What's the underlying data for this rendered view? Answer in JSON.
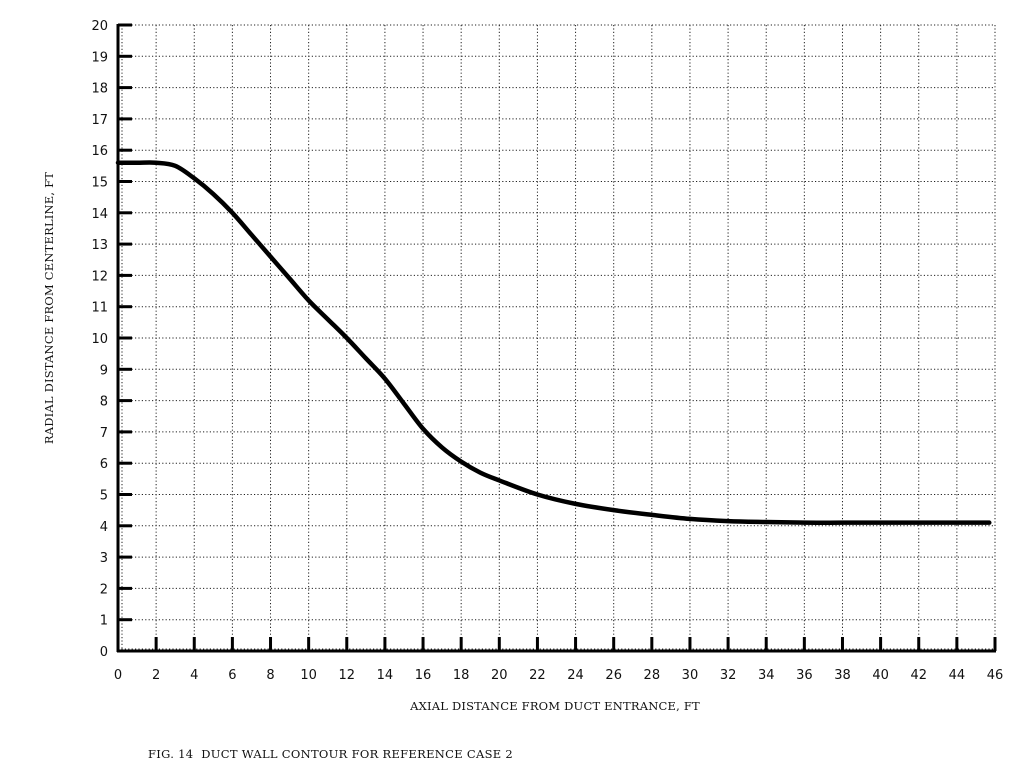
{
  "figure": {
    "caption": "FIG. 14  DUCT WALL CONTOUR FOR REFERENCE CASE 2"
  },
  "chart_data": {
    "type": "line",
    "title": "DUCT WALL CONTOUR FOR REFERENCE CASE 2",
    "figure_number": "FIG. 14",
    "xlabel": "AXIAL DISTANCE FROM DUCT ENTRANCE, FT",
    "ylabel": "RADIAL DISTANCE FROM CENTERLINE, FT",
    "xlim": [
      0,
      46
    ],
    "ylim": [
      0,
      20
    ],
    "x_ticks": [
      0,
      2,
      4,
      6,
      8,
      10,
      12,
      14,
      16,
      18,
      20,
      22,
      24,
      26,
      28,
      30,
      32,
      34,
      36,
      38,
      40,
      42,
      44,
      46
    ],
    "y_ticks": [
      0,
      1,
      2,
      3,
      4,
      5,
      6,
      7,
      8,
      9,
      10,
      11,
      12,
      13,
      14,
      15,
      16,
      17,
      18,
      19,
      20
    ],
    "grid": true,
    "grid_style": "dotted",
    "legend": null,
    "series": [
      {
        "name": "Duct wall contour",
        "x": [
          0,
          1,
          2,
          3,
          4,
          5,
          6,
          7,
          8,
          9,
          10,
          11,
          12,
          13,
          14,
          15,
          16,
          17,
          18,
          19,
          20,
          22,
          24,
          26,
          28,
          30,
          32,
          34,
          36,
          38,
          40,
          42,
          44,
          45.7
        ],
        "y": [
          15.6,
          15.6,
          15.6,
          15.5,
          15.1,
          14.6,
          14.0,
          13.3,
          12.6,
          11.9,
          11.2,
          10.6,
          10.0,
          9.35,
          8.7,
          7.9,
          7.1,
          6.5,
          6.05,
          5.7,
          5.45,
          5.0,
          4.7,
          4.5,
          4.35,
          4.22,
          4.15,
          4.12,
          4.1,
          4.1,
          4.1,
          4.1,
          4.1,
          4.1
        ]
      }
    ]
  }
}
